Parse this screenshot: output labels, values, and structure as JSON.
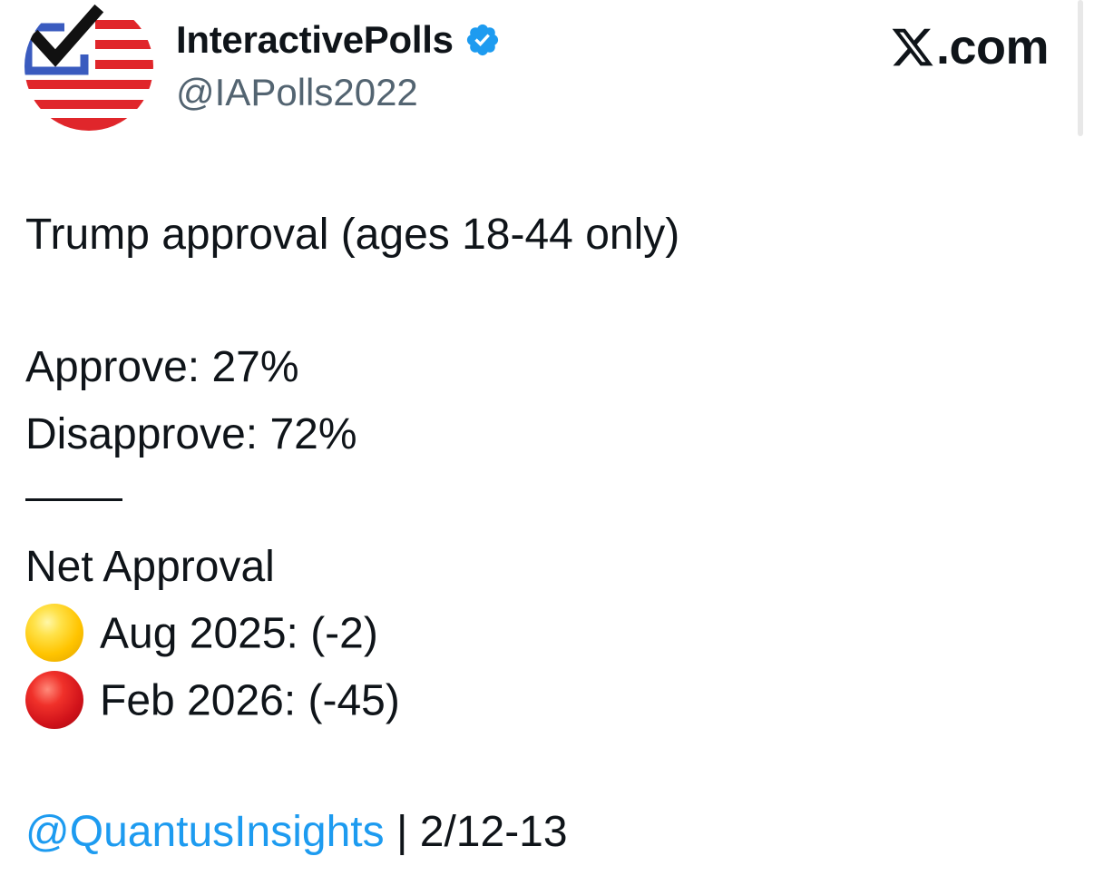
{
  "author": {
    "display_name": "InteractivePolls",
    "handle": "@IAPolls2022",
    "verified": true
  },
  "brand": {
    "text": ".com",
    "icon": "x-logo-icon"
  },
  "post": {
    "title_line": "Trump approval (ages 18-44 only)",
    "approve_line": "Approve: 27%",
    "disapprove_line": "Disapprove: 72%",
    "divider": "——",
    "net_heading": "Net Approval",
    "net_items": [
      {
        "emoji": "yellow-circle-icon",
        "text": "Aug 2025: (-2)"
      },
      {
        "emoji": "red-circle-icon",
        "text": "Feb 2026: (-45)"
      }
    ],
    "source_mention": "@QuantusInsights",
    "source_separator": "|",
    "source_dates": "2/12-13"
  },
  "colors": {
    "text": "#0f1419",
    "secondary_text": "#536471",
    "link": "#1d9bf0",
    "verified_badge": "#1d9bf0",
    "flag_red": "#e0262b",
    "flag_blue": "#3a5bbf"
  }
}
